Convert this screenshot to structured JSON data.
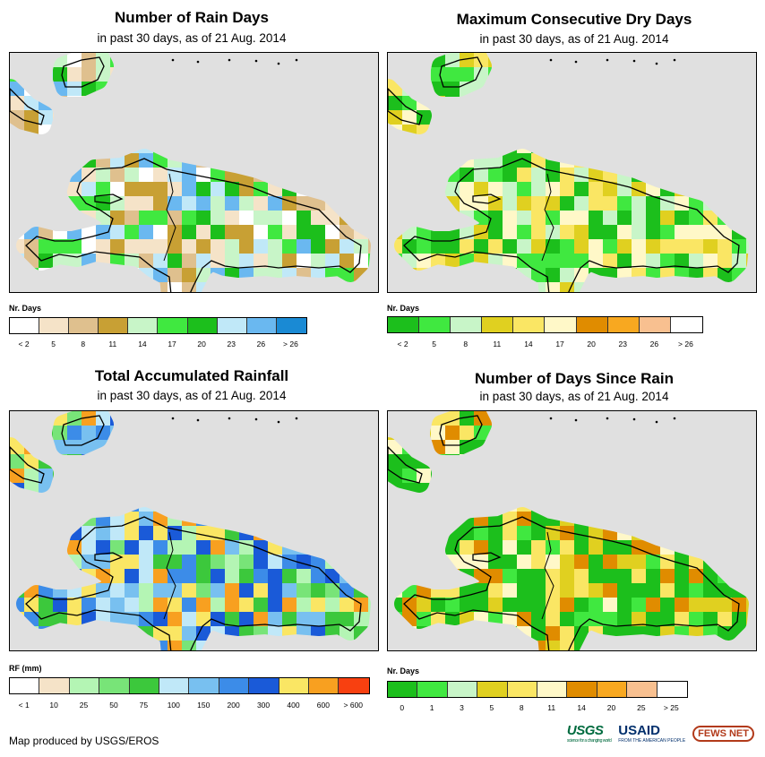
{
  "panels": [
    {
      "id": "rain-days",
      "title": "Number of Rain Days",
      "subtitle": "in past 30 days, as of 21 Aug. 2014",
      "legend_title": "Nr. Days",
      "legend_colors": [
        "#ffffff",
        "#f5e3c8",
        "#dfc08e",
        "#c8a034",
        "#c8f5c8",
        "#40e840",
        "#1cbf1c",
        "#c0e8f8",
        "#6ab8f0",
        "#1a8ad4"
      ],
      "legend_ticks": [
        "< 2",
        "5",
        "8",
        "11",
        "14",
        "17",
        "20",
        "23",
        "26",
        "> 26"
      ],
      "map_palette": [
        "#f5e3c8",
        "#dfc08e",
        "#c8a034",
        "#c8f5c8",
        "#40e840",
        "#1cbf1c",
        "#c0e8f8",
        "#6ab8f0",
        "#ffffff"
      ]
    },
    {
      "id": "dry-days",
      "title": "Maximum Consecutive Dry Days",
      "subtitle": "in past 30 days, as of 21 Aug. 2014",
      "legend_title": "Nr. Days",
      "legend_colors": [
        "#1cbf1c",
        "#40e840",
        "#c8f5c8",
        "#e0d020",
        "#fae664",
        "#fff8c8",
        "#e08c00",
        "#f8a820",
        "#f8c090",
        "#ffffff"
      ],
      "legend_ticks": [
        "< 2",
        "5",
        "8",
        "11",
        "14",
        "17",
        "20",
        "23",
        "26",
        "> 26"
      ],
      "map_palette": [
        "#1cbf1c",
        "#40e840",
        "#c8f5c8",
        "#e0d020",
        "#fae664",
        "#fff8c8"
      ]
    },
    {
      "id": "rainfall",
      "title": "Total Accumulated Rainfall",
      "subtitle": "in past 30 days, as of 21 Aug. 2014",
      "legend_title": "RF (mm)",
      "legend_colors": [
        "#ffffff",
        "#f5e3c8",
        "#b4f5b4",
        "#78e478",
        "#3cc83c",
        "#c0e8f8",
        "#78c0f0",
        "#3c8ce8",
        "#1a5ad8",
        "#fae664",
        "#f8a020",
        "#f84010"
      ],
      "legend_ticks": [
        "< 1",
        "10",
        "25",
        "50",
        "75",
        "100",
        "150",
        "200",
        "300",
        "400",
        "600",
        "> 600"
      ],
      "map_palette": [
        "#78e478",
        "#3cc83c",
        "#c0e8f8",
        "#78c0f0",
        "#3c8ce8",
        "#1a5ad8",
        "#b4f5b4",
        "#fae664",
        "#f8a020"
      ]
    },
    {
      "id": "since-rain",
      "title": "Number of Days Since Rain",
      "subtitle": "in past 30 days, as of 21 Aug. 2014",
      "legend_title": "Nr. Days",
      "legend_colors": [
        "#1cbf1c",
        "#40e840",
        "#c8f5c8",
        "#e0d020",
        "#fae664",
        "#fff8c8",
        "#e08c00",
        "#f8a820",
        "#f8c090",
        "#ffffff"
      ],
      "legend_ticks": [
        "0",
        "1",
        "3",
        "5",
        "8",
        "11",
        "14",
        "20",
        "25",
        "> 25"
      ],
      "map_palette": [
        "#1cbf1c",
        "#1cbf1c",
        "#1cbf1c",
        "#40e840",
        "#fae664",
        "#e08c00",
        "#fff8c8",
        "#e0d020"
      ]
    }
  ],
  "credit": "Map produced by USGS/EROS",
  "logos": {
    "usgs": "USGS",
    "usgs_tagline": "science for a changing world",
    "usaid": "USAID",
    "usaid_tagline": "FROM THE AMERICAN PEOPLE",
    "fews": "FEWS NET"
  }
}
